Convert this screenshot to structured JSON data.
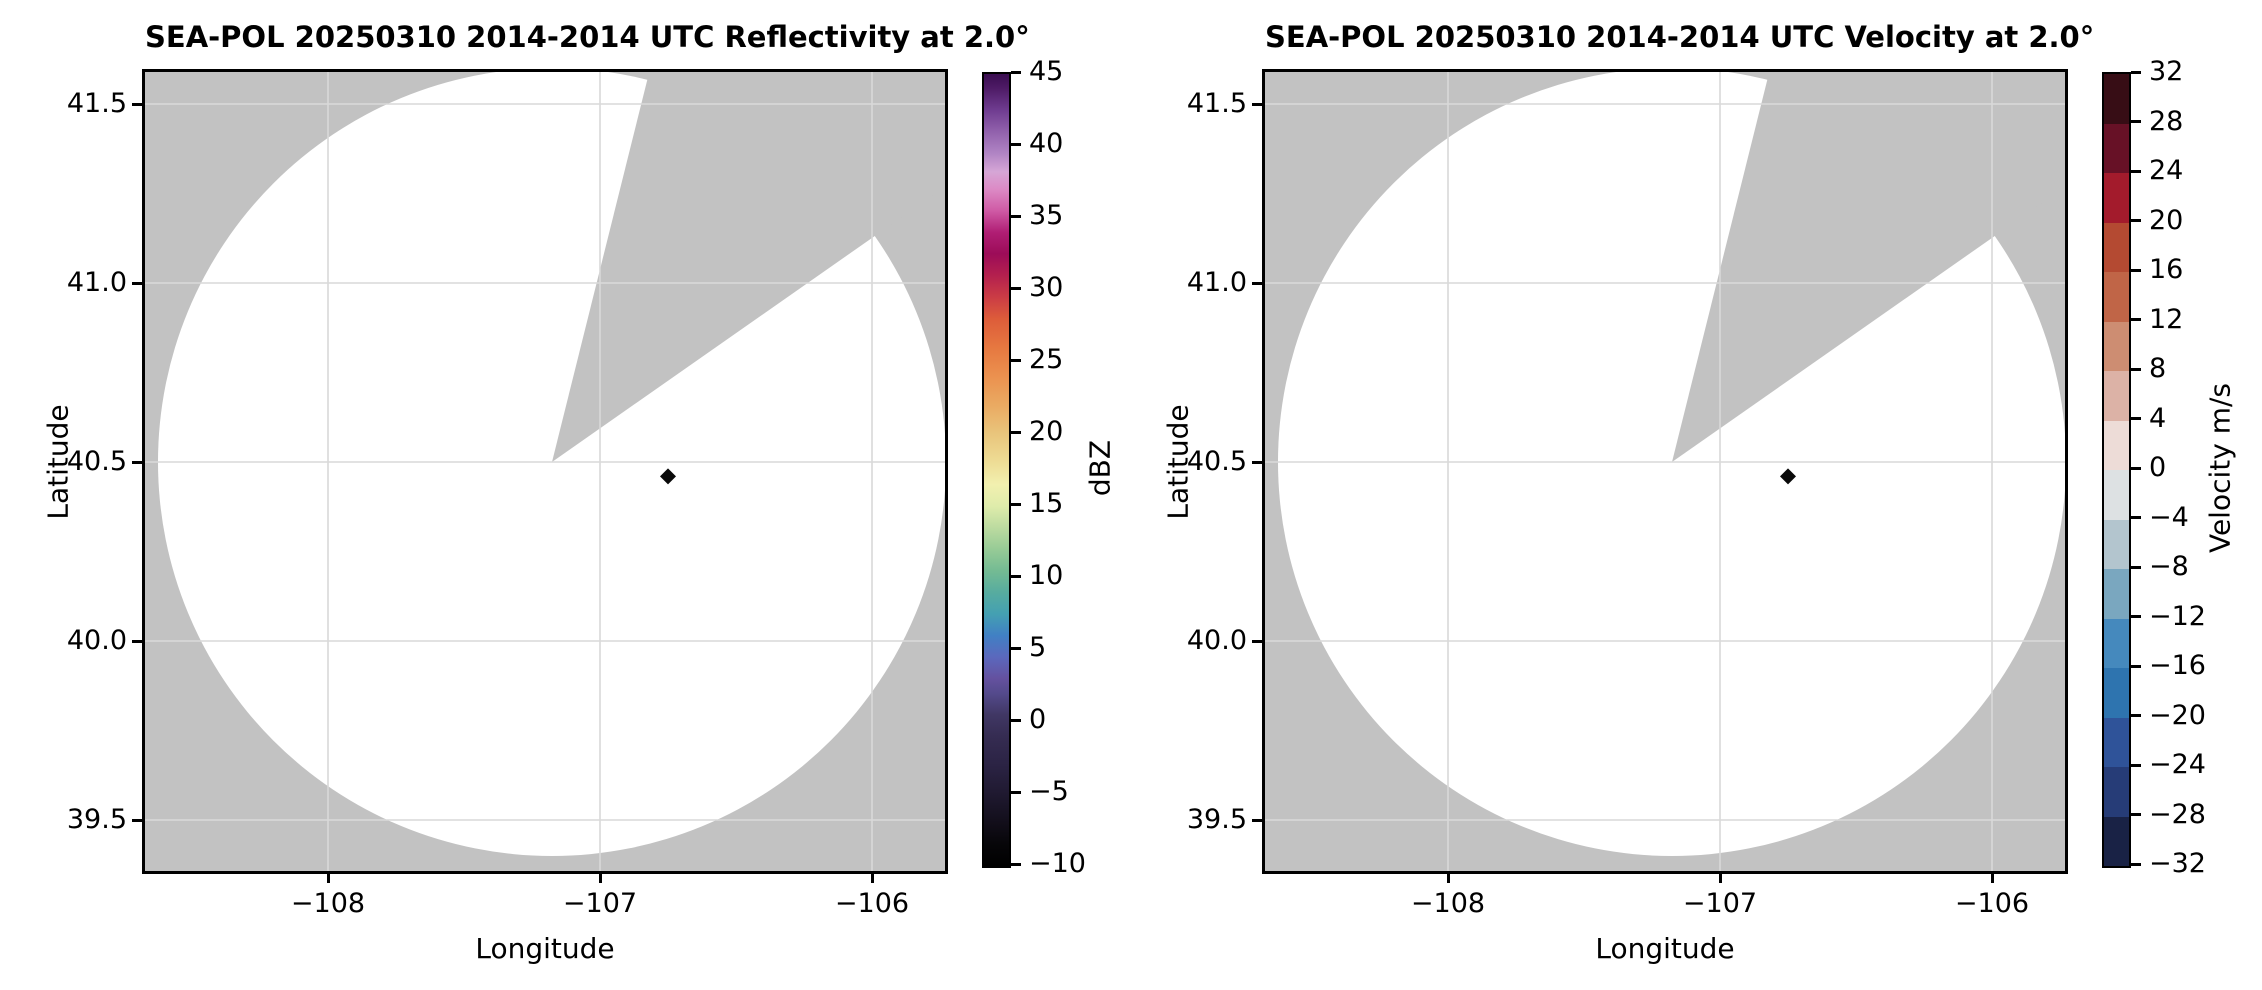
{
  "figure": {
    "background": "#ffffff",
    "colors": {
      "masked_gray": "#c2c2c2",
      "scan_white": "#ffffff",
      "grid_line": "#d9d9d9",
      "frame": "#000000",
      "text": "#000000",
      "marker": "#0a0a0a"
    }
  },
  "panels": [
    {
      "title": "SEA-POL 20250310 2014-2014 UTC Reflectivity at 2.0°",
      "xlabel": "Longitude",
      "ylabel": "Latitude",
      "xticks": {
        "values": [
          -108,
          -107,
          -106
        ],
        "labels": [
          "−108",
          "−107",
          "−106"
        ]
      },
      "yticks": {
        "values": [
          41.5,
          41.0,
          40.5,
          40.0,
          39.5
        ],
        "labels": [
          "41.5",
          "41.0",
          "40.5",
          "40.0",
          "39.5"
        ]
      },
      "colorbar": {
        "label": "dBZ",
        "vmin": -10,
        "vmax": 45,
        "tick_values": [
          45,
          40,
          35,
          30,
          25,
          20,
          15,
          10,
          5,
          0,
          -5,
          -10
        ],
        "tick_labels": [
          "45",
          "40",
          "35",
          "30",
          "25",
          "20",
          "15",
          "10",
          "5",
          "0",
          "−5",
          "−10"
        ],
        "gradient_stops": [
          {
            "v": -10,
            "c": "#000000"
          },
          {
            "v": -8.5,
            "c": "#070609"
          },
          {
            "v": -7,
            "c": "#120e1a"
          },
          {
            "v": -5,
            "c": "#1f1930"
          },
          {
            "v": -3,
            "c": "#2b2344"
          },
          {
            "v": -1,
            "c": "#352c52"
          },
          {
            "v": 0.5,
            "c": "#403764"
          },
          {
            "v": 2,
            "c": "#544a8c"
          },
          {
            "v": 3,
            "c": "#64519f"
          },
          {
            "v": 4.5,
            "c": "#5b68bd"
          },
          {
            "v": 6,
            "c": "#4180c4"
          },
          {
            "v": 7.5,
            "c": "#44a0b2"
          },
          {
            "v": 9,
            "c": "#57ac9f"
          },
          {
            "v": 10.5,
            "c": "#74bb93"
          },
          {
            "v": 12,
            "c": "#97cb96"
          },
          {
            "v": 13.5,
            "c": "#bcdba0"
          },
          {
            "v": 15,
            "c": "#dfecab"
          },
          {
            "v": 16.5,
            "c": "#f2f0af"
          },
          {
            "v": 18,
            "c": "#eedd96"
          },
          {
            "v": 20,
            "c": "#e9c57c"
          },
          {
            "v": 22,
            "c": "#eaaa62"
          },
          {
            "v": 24,
            "c": "#eb914f"
          },
          {
            "v": 26,
            "c": "#e67840"
          },
          {
            "v": 28,
            "c": "#dd5c3a"
          },
          {
            "v": 29.5,
            "c": "#cb3c45"
          },
          {
            "v": 31,
            "c": "#b4204e"
          },
          {
            "v": 32.5,
            "c": "#9c0c58"
          },
          {
            "v": 34,
            "c": "#b01e74"
          },
          {
            "v": 35.5,
            "c": "#cf5aa5"
          },
          {
            "v": 37,
            "c": "#dc8ac5"
          },
          {
            "v": 38.2,
            "c": "#d6a6d6"
          },
          {
            "v": 39.5,
            "c": "#b084c4"
          },
          {
            "v": 41,
            "c": "#9161ac"
          },
          {
            "v": 42.5,
            "c": "#6f3c90"
          },
          {
            "v": 44,
            "c": "#4e1b66"
          },
          {
            "v": 45,
            "c": "#3a0d50"
          }
        ]
      }
    },
    {
      "title": "SEA-POL 20250310 2014-2014 UTC Velocity at 2.0°",
      "xlabel": "Longitude",
      "ylabel": "Latitude",
      "xticks": {
        "values": [
          -108,
          -107,
          -106
        ],
        "labels": [
          "−108",
          "−107",
          "−106"
        ]
      },
      "yticks": {
        "values": [
          41.5,
          41.0,
          40.5,
          40.0,
          39.5
        ],
        "labels": [
          "41.5",
          "41.0",
          "40.5",
          "40.0",
          "39.5"
        ]
      },
      "colorbar": {
        "label": "Velocity m/s",
        "vmin": -32,
        "vmax": 32,
        "tick_values": [
          32,
          28,
          24,
          20,
          16,
          12,
          8,
          4,
          0,
          -4,
          -8,
          -12,
          -16,
          -20,
          -24,
          -28,
          -32
        ],
        "tick_labels": [
          "32",
          "28",
          "24",
          "20",
          "16",
          "12",
          "8",
          "4",
          "0",
          "−4",
          "−8",
          "−12",
          "−16",
          "−20",
          "−24",
          "−28",
          "−32"
        ],
        "bands_top_to_bottom": [
          {
            "from": 32,
            "to": 28,
            "c": "#370d15"
          },
          {
            "from": 28,
            "to": 24,
            "c": "#671126"
          },
          {
            "from": 24,
            "to": 20,
            "c": "#a31b2c"
          },
          {
            "from": 20,
            "to": 16,
            "c": "#b44a32"
          },
          {
            "from": 16,
            "to": 12,
            "c": "#c06547"
          },
          {
            "from": 12,
            "to": 8,
            "c": "#cd8d72"
          },
          {
            "from": 8,
            "to": 4,
            "c": "#dcb2a6"
          },
          {
            "from": 4,
            "to": 0,
            "c": "#eddcd7"
          },
          {
            "from": 0,
            "to": -4,
            "c": "#dde1e3"
          },
          {
            "from": -4,
            "to": -8,
            "c": "#b3c5ce"
          },
          {
            "from": -8,
            "to": -12,
            "c": "#7aa7bf"
          },
          {
            "from": -12,
            "to": -16,
            "c": "#4589bd"
          },
          {
            "from": -16,
            "to": -20,
            "c": "#2e74af"
          },
          {
            "from": -20,
            "to": -24,
            "c": "#2f5399"
          },
          {
            "from": -24,
            "to": -28,
            "c": "#263c77"
          },
          {
            "from": -28,
            "to": -32,
            "c": "#192245"
          }
        ]
      }
    }
  ],
  "chart_data": [
    {
      "type": "heatmap",
      "subtype": "radar-ppi-scan",
      "title": "SEA-POL 20250310 2014-2014 UTC Reflectivity at 2.0°",
      "xlabel": "Longitude",
      "ylabel": "Latitude",
      "xlim": [
        -108.67,
        -105.73
      ],
      "ylim": [
        39.36,
        41.6
      ],
      "xticks": [
        -108,
        -107,
        -106
      ],
      "yticks": [
        41.5,
        41.0,
        40.5,
        40.0,
        39.5
      ],
      "grid": true,
      "legend": false,
      "colorbar": {
        "label": "dBZ",
        "vmin": -10,
        "vmax": 45,
        "tick_step": 5,
        "position": "right"
      },
      "radar_center": {
        "lon": -107.18,
        "lat": 40.5
      },
      "scan_radius_deg": {
        "lon": 1.45,
        "lat": 1.1
      },
      "blocked_sector_azimuth_deg": [
        14,
        55
      ],
      "echoes": "none visible (empty white scan area on gray masked background)",
      "marker": {
        "lon": -106.75,
        "lat": 40.46,
        "shape": "diamond",
        "color": "#0a0a0a"
      }
    },
    {
      "type": "heatmap",
      "subtype": "radar-ppi-scan",
      "title": "SEA-POL 20250310 2014-2014 UTC Velocity at 2.0°",
      "xlabel": "Longitude",
      "ylabel": "Latitude",
      "xlim": [
        -108.67,
        -105.73
      ],
      "ylim": [
        39.36,
        41.6
      ],
      "xticks": [
        -108,
        -107,
        -106
      ],
      "yticks": [
        41.5,
        41.0,
        40.5,
        40.0,
        39.5
      ],
      "grid": true,
      "legend": false,
      "colorbar": {
        "label": "Velocity m/s",
        "vmin": -32,
        "vmax": 32,
        "tick_step": 4,
        "position": "right"
      },
      "radar_center": {
        "lon": -107.18,
        "lat": 40.5
      },
      "scan_radius_deg": {
        "lon": 1.45,
        "lat": 1.1
      },
      "blocked_sector_azimuth_deg": [
        14,
        55
      ],
      "echoes": "none visible (empty white scan area on gray masked background)",
      "marker": {
        "lon": -106.75,
        "lat": 40.46,
        "shape": "diamond",
        "color": "#0a0a0a"
      }
    }
  ]
}
